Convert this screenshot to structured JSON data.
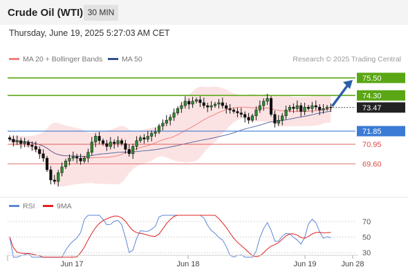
{
  "header": {
    "instrument": "Crude Oil (WTI)",
    "timeframe": "30 MIN",
    "datetime": "Thursday, June 19, 2025 5:27:03 AM CET"
  },
  "legend": {
    "ma20": "MA 20 + Bollinger Bands",
    "ma50": "MA 50",
    "credit": "Research © 2025 Trading Central",
    "ma20_color": "#f08080",
    "ma50_color": "#2c4f8f"
  },
  "chart_data": [
    {
      "type": "candlestick",
      "ylim": [
        67.5,
        76.3
      ],
      "x_ticks": [
        "Jun 17",
        "Jun 18",
        "Jun 19",
        "Jun 28"
      ],
      "grid": false,
      "levels": [
        {
          "value": 75.5,
          "label": "75.50",
          "role": "target",
          "color": "#5aa614"
        },
        {
          "value": 74.3,
          "label": "74.30",
          "role": "resistance",
          "color": "#5aa614"
        },
        {
          "value": 73.47,
          "label": "73.47",
          "role": "last price",
          "color": "#222222"
        },
        {
          "value": 71.85,
          "label": "71.85",
          "role": "pivot",
          "color": "#3b7bd6"
        },
        {
          "value": 70.95,
          "label": "70.95",
          "role": "support",
          "color": "#d94a4a"
        },
        {
          "value": 69.6,
          "label": "69.60",
          "role": "support",
          "color": "#d94a4a"
        }
      ],
      "close": [
        71.3,
        71.1,
        71.2,
        71.0,
        71.1,
        70.9,
        70.8,
        70.6,
        70.3,
        70.0,
        69.2,
        68.5,
        68.4,
        69.0,
        69.4,
        69.8,
        70.0,
        70.1,
        70.0,
        69.8,
        70.0,
        70.4,
        71.1,
        71.5,
        71.2,
        71.0,
        70.8,
        71.1,
        71.0,
        71.2,
        71.0,
        70.6,
        70.3,
        70.8,
        71.2,
        71.4,
        71.3,
        71.5,
        71.7,
        71.8,
        72.2,
        72.4,
        72.6,
        72.8,
        73.1,
        73.4,
        73.6,
        73.9,
        73.7,
        73.9,
        74.0,
        73.8,
        73.6,
        73.5,
        73.6,
        73.7,
        73.8,
        73.6,
        73.4,
        73.3,
        73.2,
        73.1,
        73.0,
        72.8,
        72.6,
        72.9,
        73.3,
        73.6,
        73.9,
        74.1,
        73.0,
        72.4,
        72.6,
        72.9,
        73.3,
        73.5,
        73.4,
        73.6,
        73.2,
        73.5,
        73.4,
        73.6,
        73.5,
        73.3,
        73.4,
        73.5,
        73.47
      ],
      "ma20_approx": "upper/lower Bollinger bands around a 20-period MA",
      "forecast": {
        "from": 73.47,
        "to": 75.5
      }
    },
    {
      "type": "line",
      "series": [
        {
          "name": "RSI",
          "color": "#5b86d6"
        },
        {
          "name": "9MA",
          "color": "#e02020"
        }
      ],
      "ylim": [
        20,
        80
      ],
      "y_ticks": [
        "70",
        "50",
        "30"
      ]
    }
  ]
}
